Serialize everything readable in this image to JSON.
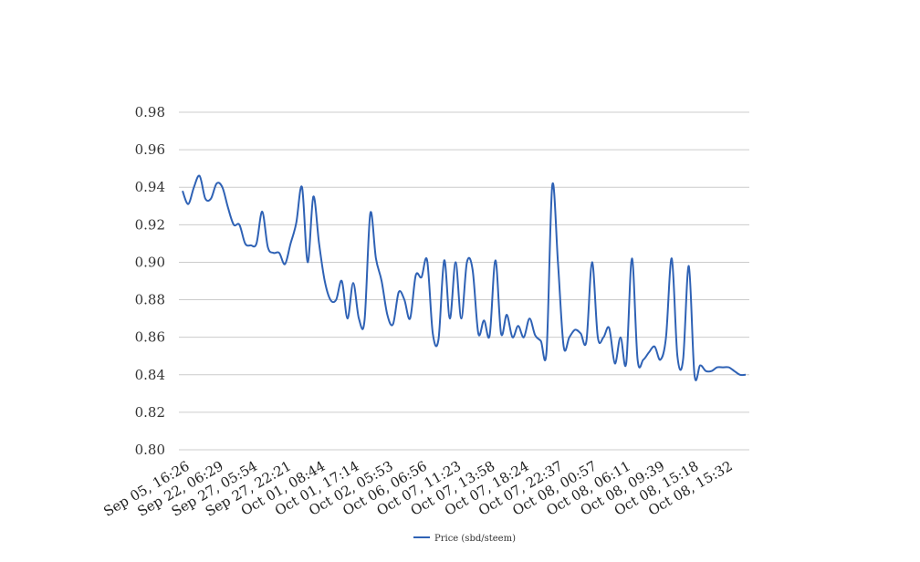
{
  "chart_data": {
    "type": "line",
    "title": "",
    "xlabel": "",
    "ylabel": "",
    "ylim": [
      0.8,
      0.98
    ],
    "yticks": [
      "0.80",
      "0.82",
      "0.84",
      "0.86",
      "0.88",
      "0.90",
      "0.92",
      "0.94",
      "0.96",
      "0.98"
    ],
    "xtick_labels": [
      "Sep 05, 16:26",
      "Sep 22, 06:29",
      "Sep 27, 05:54",
      "Sep 27, 22:21",
      "Oct 01, 08:44",
      "Oct 01, 17:14",
      "Oct 02, 05:53",
      "Oct 06, 06:56",
      "Oct 07, 11:23",
      "Oct 07, 13:58",
      "Oct 07, 18:24",
      "Oct 07, 22:37",
      "Oct 08, 00:57",
      "Oct 08, 06:11",
      "Oct 08, 09:39",
      "Oct 08, 15:18",
      "Oct 08, 15:32"
    ],
    "grid": true,
    "legend_position": "bottom",
    "series": [
      {
        "name": "Price (sbd/steem)",
        "color": "#2f62b5",
        "values": [
          0.938,
          0.931,
          0.94,
          0.946,
          0.934,
          0.934,
          0.942,
          0.94,
          0.929,
          0.92,
          0.92,
          0.91,
          0.909,
          0.91,
          0.927,
          0.908,
          0.905,
          0.905,
          0.899,
          0.91,
          0.921,
          0.94,
          0.9,
          0.935,
          0.91,
          0.89,
          0.88,
          0.88,
          0.89,
          0.87,
          0.889,
          0.87,
          0.869,
          0.926,
          0.902,
          0.89,
          0.872,
          0.867,
          0.884,
          0.88,
          0.87,
          0.893,
          0.892,
          0.901,
          0.862,
          0.859,
          0.901,
          0.87,
          0.9,
          0.87,
          0.9,
          0.896,
          0.862,
          0.869,
          0.861,
          0.901,
          0.862,
          0.872,
          0.86,
          0.866,
          0.86,
          0.87,
          0.861,
          0.858,
          0.853,
          0.941,
          0.9,
          0.855,
          0.86,
          0.864,
          0.862,
          0.858,
          0.9,
          0.86,
          0.86,
          0.865,
          0.846,
          0.86,
          0.846,
          0.902,
          0.848,
          0.848,
          0.852,
          0.855,
          0.848,
          0.86,
          0.902,
          0.85,
          0.848,
          0.898,
          0.84,
          0.845,
          0.842,
          0.842,
          0.844,
          0.844,
          0.844,
          0.842,
          0.84,
          0.84
        ]
      }
    ]
  }
}
